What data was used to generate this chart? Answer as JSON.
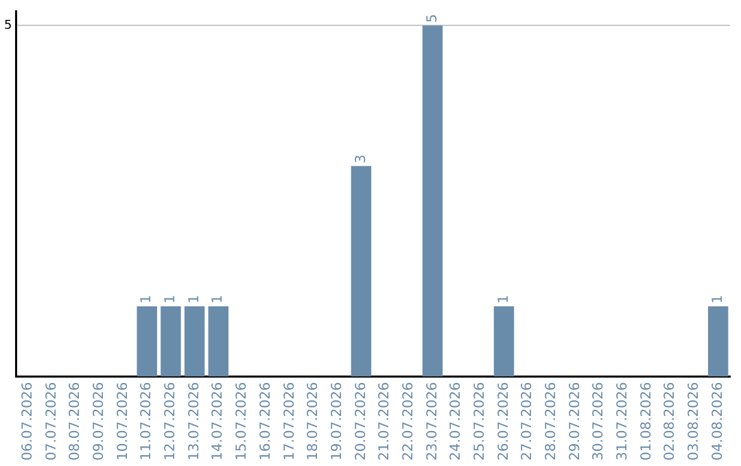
{
  "chart_data": {
    "type": "bar",
    "categories": [
      "06.07.2026",
      "07.07.2026",
      "08.07.2026",
      "09.07.2026",
      "10.07.2026",
      "11.07.2026",
      "12.07.2026",
      "13.07.2026",
      "14.07.2026",
      "15.07.2026",
      "16.07.2026",
      "17.07.2026",
      "18.07.2026",
      "19.07.2026",
      "20.07.2026",
      "21.07.2026",
      "22.07.2026",
      "23.07.2026",
      "24.07.2026",
      "25.07.2026",
      "26.07.2026",
      "27.07.2026",
      "28.07.2026",
      "29.07.2026",
      "30.07.2026",
      "31.07.2026",
      "01.08.2026",
      "02.08.2026",
      "03.08.2026",
      "04.08.2026"
    ],
    "values": [
      0,
      0,
      0,
      0,
      0,
      1,
      1,
      1,
      1,
      0,
      0,
      0,
      0,
      0,
      3,
      0,
      0,
      5,
      0,
      0,
      1,
      0,
      0,
      0,
      0,
      0,
      0,
      0,
      0,
      1
    ],
    "value_labels": [
      null,
      null,
      null,
      null,
      null,
      "1",
      "1",
      "1",
      "1",
      null,
      null,
      null,
      null,
      null,
      "3",
      null,
      null,
      "5",
      null,
      null,
      "1",
      null,
      null,
      null,
      null,
      null,
      null,
      null,
      null,
      "1"
    ],
    "color": "#6a8cab",
    "ylim": [
      0,
      5.2
    ],
    "yticks": [
      5
    ],
    "grid": "y",
    "legend": false
  }
}
